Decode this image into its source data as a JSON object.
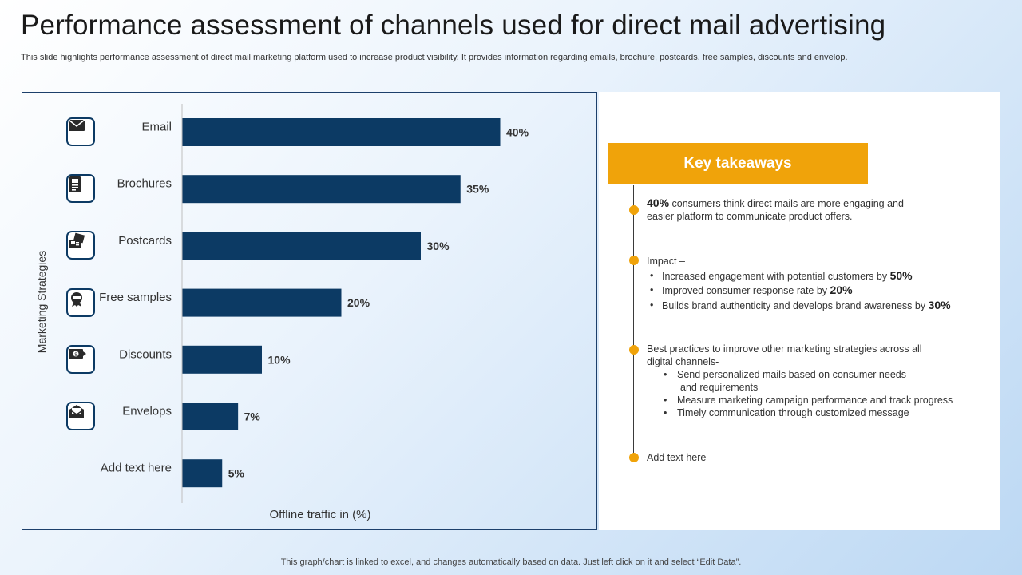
{
  "title": "Performance assessment of channels used for direct mail advertising",
  "subtitle": "This slide highlights performance assessment of direct mail marketing platform used to increase product visibility. It provides information regarding emails, brochure, postcards, free samples, discounts and envelop.",
  "chart_data": {
    "type": "bar",
    "orientation": "horizontal",
    "categories": [
      "Email",
      "Brochures",
      "Postcards",
      "Free samples",
      "Discounts",
      "Envelops",
      "Add text here"
    ],
    "values": [
      40,
      35,
      30,
      20,
      10,
      7,
      5
    ],
    "value_labels": [
      "40%",
      "35%",
      "30%",
      "20%",
      "10%",
      "7%",
      "5%"
    ],
    "xlabel": "Offline traffic in (%)",
    "ylabel": "Marketing Strategies",
    "xlim": [
      0,
      40
    ],
    "bar_color": "#0c3a64",
    "grid": false
  },
  "category_icons": [
    "mail-icon",
    "brochure-icon",
    "postcards-icon",
    "free-sample-icon",
    "discount-icon",
    "envelope-icon"
  ],
  "takeaways": {
    "header": "Key takeaways",
    "item1": {
      "stat": "40%",
      "line1": " consumers think direct mails are more engaging and",
      "line2": "easier platform to communicate product offers."
    },
    "item2": {
      "heading": "Impact –",
      "b1_text": "Increased engagement with potential customers by ",
      "b1_val": "50%",
      "b2_text": "Improved consumer response rate by ",
      "b2_val": "20%",
      "b3_text": "Builds brand authenticity and develops brand awareness by ",
      "b3_val": "30%"
    },
    "item3": {
      "line1": "Best practices to improve other marketing strategies across all",
      "line2": "digital channels-",
      "b1a": "Send personalized mails based on consumer needs",
      "b1b": "and requirements",
      "b2": "Measure marketing campaign performance and track progress",
      "b3": "Timely communication through customized message"
    },
    "item4": "Add text here"
  },
  "colors": {
    "accent": "#f0a30a",
    "bar": "#0c3a64",
    "icon_border": "#0c3a64"
  },
  "footer": "This graph/chart is linked to excel, and changes automatically based on data. Just left click on it and select “Edit Data”."
}
